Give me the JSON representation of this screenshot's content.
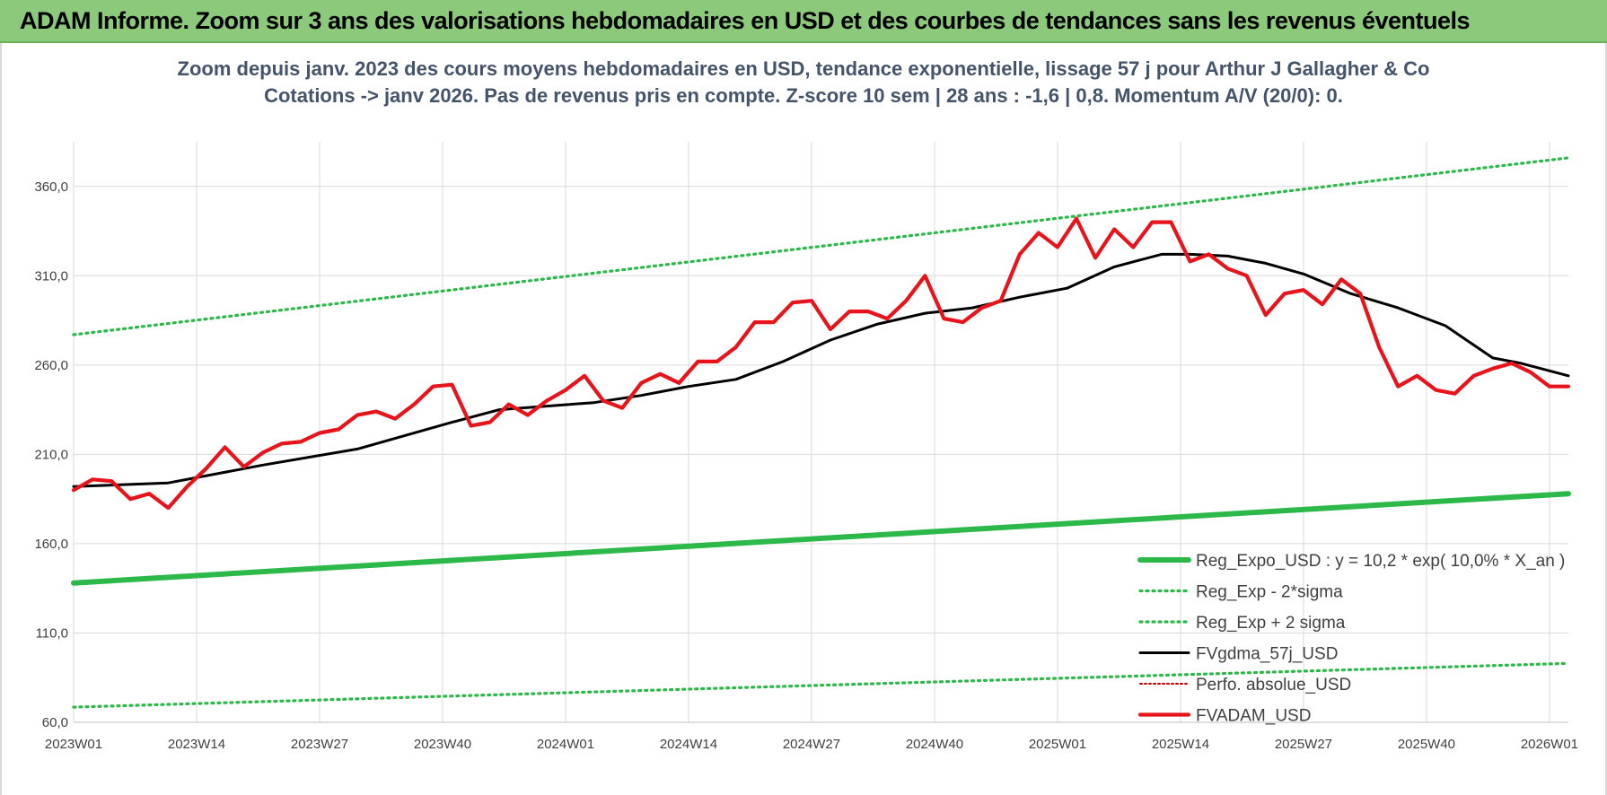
{
  "banner": {
    "title": "ADAM Informe. Zoom sur 3 ans des valorisations hebdomadaires en USD et des courbes de tendances sans les revenus éventuels"
  },
  "chart_data": {
    "type": "line",
    "title": "Zoom depuis janv. 2023 des cours moyens hebdomadaires en USD, tendance exponentielle, lissage 57 j pour Arthur J Gallagher & Co",
    "subtitle": "Cotations -> janv 2026. Pas de revenus pris en compte. Z-score 10 sem | 28 ans : -1,6 | 0,8. Momentum A/V (20/0): 0.",
    "xlabel": "",
    "ylabel": "",
    "ylim": [
      60,
      385
    ],
    "yticks": [
      60,
      110,
      160,
      210,
      260,
      310,
      360
    ],
    "ytick_labels": [
      "60,0",
      "110,0",
      "160,0",
      "210,0",
      "260,0",
      "310,0",
      "360,0"
    ],
    "x_count": 159,
    "xticks": [
      0,
      13,
      26,
      39,
      52,
      65,
      78,
      91,
      104,
      117,
      130,
      143,
      156
    ],
    "xtick_labels": [
      "2023W01",
      "2023W14",
      "2023W27",
      "2023W40",
      "2024W01",
      "2024W14",
      "2024W27",
      "2024W40",
      "2025W01",
      "2025W14",
      "2025W27",
      "2025W40",
      "2026W01"
    ],
    "grid": true,
    "legend_position": "bottom-right",
    "series": [
      {
        "name": "Reg_Expo_USD : y = 10,2 * exp( 10,0% *  X_an )",
        "color": "#2db84a",
        "style": "solid-thick",
        "x": [
          0,
          158
        ],
        "values": [
          138,
          188
        ]
      },
      {
        "name": "Reg_Exp - 2*sigma",
        "color": "#2db84a",
        "style": "dotted",
        "x": [
          0,
          158
        ],
        "values": [
          68.5,
          93
        ]
      },
      {
        "name": "Reg_Exp + 2 sigma",
        "color": "#2db84a",
        "style": "dotted",
        "x": [
          0,
          158
        ],
        "values": [
          277,
          376
        ]
      },
      {
        "name": "FVgdma_57j_USD",
        "color": "#000000",
        "style": "solid",
        "x": [
          0,
          10,
          20,
          30,
          40,
          45,
          50,
          55,
          60,
          65,
          70,
          75,
          80,
          85,
          90,
          95,
          100,
          105,
          110,
          115,
          118,
          122,
          126,
          130,
          135,
          140,
          145,
          150,
          153,
          158
        ],
        "values": [
          192,
          194,
          204,
          213,
          228,
          235,
          237,
          239,
          243,
          248,
          252,
          262,
          274,
          283,
          289,
          292,
          298,
          303,
          315,
          322,
          322,
          321,
          317,
          311,
          300,
          292,
          282,
          264,
          261,
          254
        ]
      },
      {
        "name": "Perfo. absolue_USD",
        "color": "#c00000",
        "style": "dotted",
        "x": [],
        "values": []
      },
      {
        "name": "FVADAM_USD",
        "color": "#e8141c",
        "style": "solid-thick",
        "x": [
          0,
          2,
          4,
          6,
          8,
          10,
          12,
          14,
          16,
          18,
          20,
          22,
          24,
          26,
          28,
          30,
          32,
          34,
          36,
          38,
          40,
          42,
          44,
          46,
          48,
          50,
          52,
          54,
          56,
          58,
          60,
          62,
          64,
          66,
          68,
          70,
          72,
          74,
          76,
          78,
          80,
          82,
          84,
          86,
          88,
          90,
          92,
          94,
          96,
          98,
          100,
          102,
          104,
          106,
          108,
          110,
          112,
          114,
          116,
          118,
          120,
          122,
          124,
          126,
          128,
          130,
          132,
          134,
          136,
          138,
          140,
          142,
          144,
          146,
          148,
          150,
          152,
          154,
          156,
          158
        ],
        "values": [
          190,
          196,
          195,
          185,
          188,
          180,
          192,
          202,
          214,
          203,
          211,
          216,
          217,
          222,
          224,
          232,
          234,
          230,
          238,
          248,
          249,
          226,
          228,
          238,
          232,
          240,
          246,
          254,
          240,
          236,
          250,
          255,
          250,
          262,
          262,
          270,
          284,
          284,
          295,
          296,
          280,
          290,
          290,
          286,
          296,
          310,
          286,
          284,
          292,
          296,
          322,
          334,
          326,
          342,
          320,
          336,
          326,
          340,
          340,
          318,
          322,
          314,
          310,
          288,
          300,
          302,
          294,
          308,
          300,
          270,
          248,
          254,
          246,
          244,
          254,
          258,
          261,
          256,
          248,
          248
        ]
      }
    ]
  }
}
